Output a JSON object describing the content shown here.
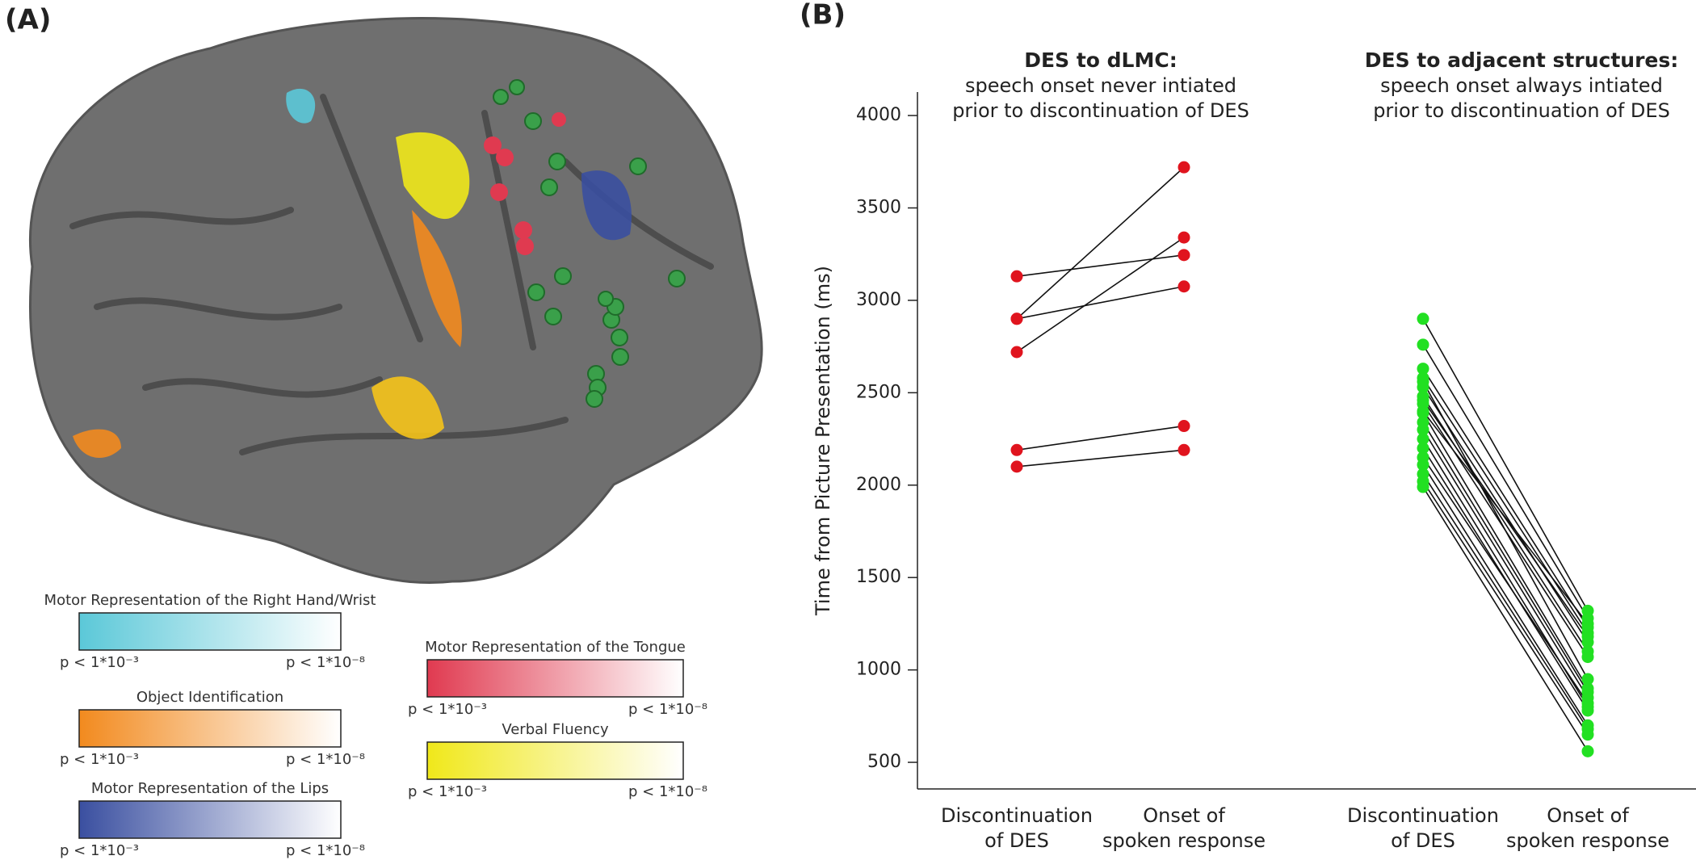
{
  "panels": [
    "(A)",
    "(B)"
  ],
  "legends": [
    {
      "title": "Motor Representation of the Right Hand/Wrist",
      "low": "p < 1*10⁻³",
      "high": "p < 1*10⁻⁸",
      "color": "#5bc8d8"
    },
    {
      "title": "Object Identification",
      "low": "p < 1*10⁻³",
      "high": "p < 1*10⁻⁸",
      "color": "#f28a1e"
    },
    {
      "title": "Motor Representation of the Lips",
      "low": "p < 1*10⁻³",
      "high": "p < 1*10⁻⁸",
      "color": "#3a4fa0"
    },
    {
      "title": "Motor Representation of the Tongue",
      "low": "p < 1*10⁻³",
      "high": "p < 1*10⁻⁸",
      "color": "#e03a50"
    },
    {
      "title": "Verbal Fluency",
      "low": "p < 1*10⁻³",
      "high": "p < 1*10⁻⁸",
      "color": "#f0e81a"
    }
  ],
  "chart_data": {
    "type": "paired",
    "ylabel": "Time from Picture Presentation (ms)",
    "ylim": [
      356,
      4127
    ],
    "yticks": [
      500,
      1000,
      1500,
      2000,
      2500,
      3000,
      3500,
      4000
    ],
    "groups": [
      {
        "title": "DES to dLMC:",
        "subtitle": [
          "speech onset never intiated",
          "prior to discontinuation of DES"
        ],
        "categories": [
          [
            "Discontinuation",
            "of DES"
          ],
          [
            "Onset of",
            "spoken response"
          ]
        ],
        "color": "#e0141e",
        "from": [
          3130,
          2900,
          2900,
          2720,
          2190,
          2100
        ],
        "to": [
          3245,
          3720,
          3075,
          3340,
          2320,
          2190
        ]
      },
      {
        "title": "DES to adjacent structures:",
        "subtitle": [
          "speech onset always intiated",
          "prior to discontinuation of DES"
        ],
        "categories": [
          [
            "Discontinuation",
            "of DES"
          ],
          [
            "Onset of",
            "spoken response"
          ]
        ],
        "color": "#22e022",
        "from": [
          2900,
          2760,
          2630,
          2580,
          2530,
          2480,
          2440,
          2390,
          2340,
          2300,
          2250,
          2200,
          2110,
          2060,
          2020,
          1990,
          2400,
          2460,
          2560,
          2150
        ],
        "to": [
          1320,
          1280,
          1230,
          1200,
          1150,
          1100,
          1070,
          900,
          880,
          850,
          800,
          780,
          700,
          680,
          650,
          560,
          1250,
          1180,
          950,
          820
        ]
      }
    ]
  }
}
